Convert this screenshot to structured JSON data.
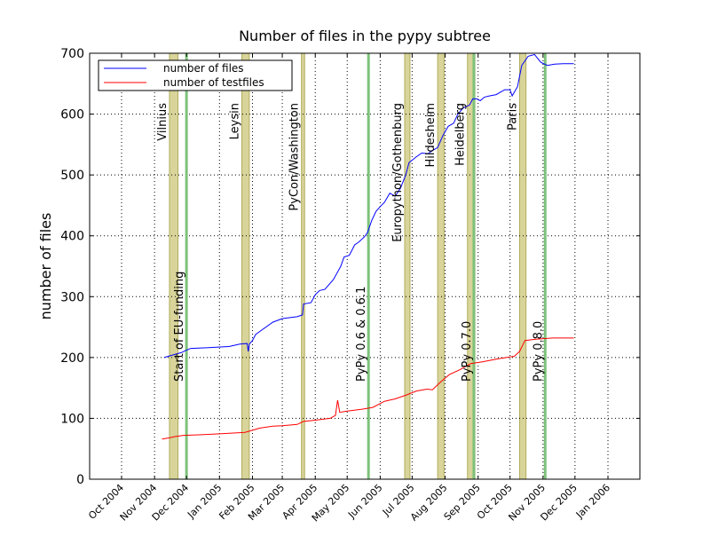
{
  "chart_data": {
    "type": "line",
    "title": "Number of files in the pypy subtree",
    "xlabel": "",
    "ylabel": "number of files",
    "xlim": [
      "2004-09-01",
      "2006-01-31"
    ],
    "ylim": [
      0,
      700
    ],
    "yticks": [
      0,
      100,
      200,
      300,
      400,
      500,
      600,
      700
    ],
    "xticks": [
      {
        "date": "2004-10-01",
        "label": "Oct 2004"
      },
      {
        "date": "2004-11-01",
        "label": "Nov 2004"
      },
      {
        "date": "2004-12-01",
        "label": "Dec 2004"
      },
      {
        "date": "2005-01-01",
        "label": "Jan 2005"
      },
      {
        "date": "2005-02-01",
        "label": "Feb 2005"
      },
      {
        "date": "2005-03-01",
        "label": "Mar 2005"
      },
      {
        "date": "2005-04-01",
        "label": "Apr 2005"
      },
      {
        "date": "2005-05-01",
        "label": "May 2005"
      },
      {
        "date": "2005-06-01",
        "label": "Jun 2005"
      },
      {
        "date": "2005-07-01",
        "label": "Jul 2005"
      },
      {
        "date": "2005-08-01",
        "label": "Aug 2005"
      },
      {
        "date": "2005-09-01",
        "label": "Sep 2005"
      },
      {
        "date": "2005-10-01",
        "label": "Oct 2005"
      },
      {
        "date": "2005-11-01",
        "label": "Nov 2005"
      },
      {
        "date": "2005-12-01",
        "label": "Dec 2005"
      },
      {
        "date": "2006-01-01",
        "label": "Jan 2006"
      }
    ],
    "grid": true,
    "legend_position": "top-left",
    "sprints": [
      {
        "name": "Vilnius",
        "start": "2004-11-15",
        "end": "2004-11-23"
      },
      {
        "name": "Leysin",
        "start": "2005-01-22",
        "end": "2005-01-29"
      },
      {
        "name": "PyCon/Washington",
        "start": "2005-03-19",
        "end": "2005-03-22"
      },
      {
        "name": "Europython/Gothenburg",
        "start": "2005-06-24",
        "end": "2005-06-29"
      },
      {
        "name": "Hildesheim",
        "start": "2005-07-25",
        "end": "2005-07-31"
      },
      {
        "name": "Heidelberg",
        "start": "2005-08-22",
        "end": "2005-08-29"
      },
      {
        "name": "Paris",
        "start": "2005-10-10",
        "end": "2005-10-16"
      }
    ],
    "releases": [
      {
        "name": "Start of EU-funding",
        "date": "2004-12-01"
      },
      {
        "name": "PyPy 0.6 & 0.6.1",
        "date": "2005-05-21"
      },
      {
        "name": "PyPy 0.7.0",
        "date": "2005-08-28"
      },
      {
        "name": "PyPy 0.8.0",
        "date": "2005-11-03"
      }
    ],
    "series": [
      {
        "name": "number of files",
        "color": "#0000ff",
        "points": [
          [
            "2004-11-10",
            200
          ],
          [
            "2004-11-20",
            205
          ],
          [
            "2004-11-26",
            208
          ],
          [
            "2004-12-01",
            212
          ],
          [
            "2004-12-05",
            215
          ],
          [
            "2004-12-20",
            216
          ],
          [
            "2005-01-10",
            218
          ],
          [
            "2005-01-20",
            222
          ],
          [
            "2005-01-27",
            223
          ],
          [
            "2005-01-28",
            210
          ],
          [
            "2005-01-29",
            222
          ],
          [
            "2005-02-01",
            228
          ],
          [
            "2005-02-04",
            238
          ],
          [
            "2005-02-08",
            243
          ],
          [
            "2005-02-20",
            258
          ],
          [
            "2005-03-01",
            264
          ],
          [
            "2005-03-15",
            267
          ],
          [
            "2005-03-20",
            270
          ],
          [
            "2005-03-21",
            288
          ],
          [
            "2005-03-28",
            290
          ],
          [
            "2005-04-01",
            303
          ],
          [
            "2005-04-05",
            310
          ],
          [
            "2005-04-10",
            312
          ],
          [
            "2005-04-18",
            328
          ],
          [
            "2005-04-25",
            350
          ],
          [
            "2005-04-28",
            365
          ],
          [
            "2005-05-03",
            368
          ],
          [
            "2005-05-08",
            385
          ],
          [
            "2005-05-12",
            390
          ],
          [
            "2005-05-17",
            398
          ],
          [
            "2005-05-20",
            405
          ],
          [
            "2005-05-24",
            425
          ],
          [
            "2005-05-28",
            440
          ],
          [
            "2005-06-01",
            448
          ],
          [
            "2005-06-05",
            455
          ],
          [
            "2005-06-10",
            470
          ],
          [
            "2005-06-15",
            465
          ],
          [
            "2005-06-20",
            478
          ],
          [
            "2005-06-25",
            500
          ],
          [
            "2005-06-28",
            520
          ],
          [
            "2005-07-05",
            530
          ],
          [
            "2005-07-10",
            536
          ],
          [
            "2005-07-16",
            535
          ],
          [
            "2005-07-20",
            540
          ],
          [
            "2005-07-25",
            545
          ],
          [
            "2005-07-30",
            565
          ],
          [
            "2005-08-04",
            580
          ],
          [
            "2005-08-09",
            585
          ],
          [
            "2005-08-13",
            600
          ],
          [
            "2005-08-18",
            610
          ],
          [
            "2005-08-24",
            615
          ],
          [
            "2005-08-27",
            625
          ],
          [
            "2005-08-31",
            625
          ],
          [
            "2005-09-03",
            622
          ],
          [
            "2005-09-07",
            628
          ],
          [
            "2005-09-12",
            630
          ],
          [
            "2005-09-18",
            632
          ],
          [
            "2005-09-26",
            640
          ],
          [
            "2005-10-01",
            640
          ],
          [
            "2005-10-03",
            630
          ],
          [
            "2005-10-08",
            645
          ],
          [
            "2005-10-12",
            680
          ],
          [
            "2005-10-18",
            695
          ],
          [
            "2005-10-24",
            698
          ],
          [
            "2005-10-30",
            685
          ],
          [
            "2005-11-05",
            680
          ],
          [
            "2005-11-12",
            682
          ],
          [
            "2005-11-20",
            683
          ],
          [
            "2005-11-30",
            683
          ]
        ]
      },
      {
        "name": "number of testfiles",
        "color": "#ff0000",
        "points": [
          [
            "2004-11-08",
            66
          ],
          [
            "2004-11-15",
            68
          ],
          [
            "2004-11-20",
            70
          ],
          [
            "2004-11-28",
            72
          ],
          [
            "2004-12-15",
            73
          ],
          [
            "2005-01-05",
            75
          ],
          [
            "2005-01-25",
            77
          ],
          [
            "2005-01-31",
            80
          ],
          [
            "2005-02-08",
            84
          ],
          [
            "2005-02-20",
            87
          ],
          [
            "2005-03-01",
            88
          ],
          [
            "2005-03-15",
            90
          ],
          [
            "2005-03-21",
            95
          ],
          [
            "2005-04-01",
            97
          ],
          [
            "2005-04-15",
            100
          ],
          [
            "2005-04-20",
            105
          ],
          [
            "2005-04-22",
            130
          ],
          [
            "2005-04-24",
            110
          ],
          [
            "2005-05-01",
            112
          ],
          [
            "2005-05-15",
            115
          ],
          [
            "2005-05-25",
            118
          ],
          [
            "2005-06-05",
            128
          ],
          [
            "2005-06-15",
            132
          ],
          [
            "2005-06-25",
            138
          ],
          [
            "2005-07-05",
            145
          ],
          [
            "2005-07-15",
            148
          ],
          [
            "2005-07-20",
            147
          ],
          [
            "2005-07-28",
            160
          ],
          [
            "2005-08-05",
            172
          ],
          [
            "2005-08-15",
            180
          ],
          [
            "2005-08-25",
            190
          ],
          [
            "2005-09-05",
            193
          ],
          [
            "2005-09-20",
            198
          ],
          [
            "2005-10-05",
            202
          ],
          [
            "2005-10-10",
            210
          ],
          [
            "2005-10-15",
            228
          ],
          [
            "2005-10-25",
            230
          ],
          [
            "2005-11-10",
            232
          ],
          [
            "2005-11-30",
            232
          ]
        ]
      }
    ]
  }
}
